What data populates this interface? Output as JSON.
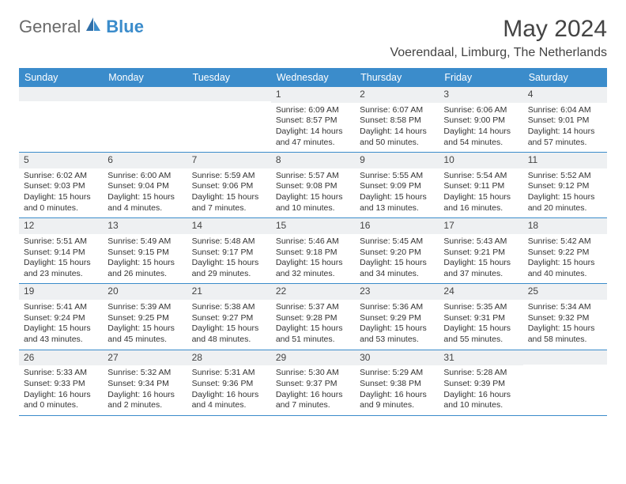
{
  "logo": {
    "text1": "General",
    "text2": "Blue"
  },
  "title": "May 2024",
  "location": "Voerendaal, Limburg, The Netherlands",
  "colors": {
    "accent": "#3b8ccb",
    "header_text": "#ffffff",
    "day_num_bg": "#eef0f2",
    "text": "#333333",
    "title_text": "#444444",
    "logo_gray": "#6a6a6a"
  },
  "fonts": {
    "title_size": 30,
    "location_size": 16,
    "dow_size": 12.5,
    "cell_size": 10.5
  },
  "days_of_week": [
    "Sunday",
    "Monday",
    "Tuesday",
    "Wednesday",
    "Thursday",
    "Friday",
    "Saturday"
  ],
  "weeks": [
    [
      {
        "blank": true
      },
      {
        "blank": true
      },
      {
        "blank": true
      },
      {
        "num": "1",
        "sunrise": "Sunrise: 6:09 AM",
        "sunset": "Sunset: 8:57 PM",
        "day1": "Daylight: 14 hours",
        "day2": "and 47 minutes."
      },
      {
        "num": "2",
        "sunrise": "Sunrise: 6:07 AM",
        "sunset": "Sunset: 8:58 PM",
        "day1": "Daylight: 14 hours",
        "day2": "and 50 minutes."
      },
      {
        "num": "3",
        "sunrise": "Sunrise: 6:06 AM",
        "sunset": "Sunset: 9:00 PM",
        "day1": "Daylight: 14 hours",
        "day2": "and 54 minutes."
      },
      {
        "num": "4",
        "sunrise": "Sunrise: 6:04 AM",
        "sunset": "Sunset: 9:01 PM",
        "day1": "Daylight: 14 hours",
        "day2": "and 57 minutes."
      }
    ],
    [
      {
        "num": "5",
        "sunrise": "Sunrise: 6:02 AM",
        "sunset": "Sunset: 9:03 PM",
        "day1": "Daylight: 15 hours",
        "day2": "and 0 minutes."
      },
      {
        "num": "6",
        "sunrise": "Sunrise: 6:00 AM",
        "sunset": "Sunset: 9:04 PM",
        "day1": "Daylight: 15 hours",
        "day2": "and 4 minutes."
      },
      {
        "num": "7",
        "sunrise": "Sunrise: 5:59 AM",
        "sunset": "Sunset: 9:06 PM",
        "day1": "Daylight: 15 hours",
        "day2": "and 7 minutes."
      },
      {
        "num": "8",
        "sunrise": "Sunrise: 5:57 AM",
        "sunset": "Sunset: 9:08 PM",
        "day1": "Daylight: 15 hours",
        "day2": "and 10 minutes."
      },
      {
        "num": "9",
        "sunrise": "Sunrise: 5:55 AM",
        "sunset": "Sunset: 9:09 PM",
        "day1": "Daylight: 15 hours",
        "day2": "and 13 minutes."
      },
      {
        "num": "10",
        "sunrise": "Sunrise: 5:54 AM",
        "sunset": "Sunset: 9:11 PM",
        "day1": "Daylight: 15 hours",
        "day2": "and 16 minutes."
      },
      {
        "num": "11",
        "sunrise": "Sunrise: 5:52 AM",
        "sunset": "Sunset: 9:12 PM",
        "day1": "Daylight: 15 hours",
        "day2": "and 20 minutes."
      }
    ],
    [
      {
        "num": "12",
        "sunrise": "Sunrise: 5:51 AM",
        "sunset": "Sunset: 9:14 PM",
        "day1": "Daylight: 15 hours",
        "day2": "and 23 minutes."
      },
      {
        "num": "13",
        "sunrise": "Sunrise: 5:49 AM",
        "sunset": "Sunset: 9:15 PM",
        "day1": "Daylight: 15 hours",
        "day2": "and 26 minutes."
      },
      {
        "num": "14",
        "sunrise": "Sunrise: 5:48 AM",
        "sunset": "Sunset: 9:17 PM",
        "day1": "Daylight: 15 hours",
        "day2": "and 29 minutes."
      },
      {
        "num": "15",
        "sunrise": "Sunrise: 5:46 AM",
        "sunset": "Sunset: 9:18 PM",
        "day1": "Daylight: 15 hours",
        "day2": "and 32 minutes."
      },
      {
        "num": "16",
        "sunrise": "Sunrise: 5:45 AM",
        "sunset": "Sunset: 9:20 PM",
        "day1": "Daylight: 15 hours",
        "day2": "and 34 minutes."
      },
      {
        "num": "17",
        "sunrise": "Sunrise: 5:43 AM",
        "sunset": "Sunset: 9:21 PM",
        "day1": "Daylight: 15 hours",
        "day2": "and 37 minutes."
      },
      {
        "num": "18",
        "sunrise": "Sunrise: 5:42 AM",
        "sunset": "Sunset: 9:22 PM",
        "day1": "Daylight: 15 hours",
        "day2": "and 40 minutes."
      }
    ],
    [
      {
        "num": "19",
        "sunrise": "Sunrise: 5:41 AM",
        "sunset": "Sunset: 9:24 PM",
        "day1": "Daylight: 15 hours",
        "day2": "and 43 minutes."
      },
      {
        "num": "20",
        "sunrise": "Sunrise: 5:39 AM",
        "sunset": "Sunset: 9:25 PM",
        "day1": "Daylight: 15 hours",
        "day2": "and 45 minutes."
      },
      {
        "num": "21",
        "sunrise": "Sunrise: 5:38 AM",
        "sunset": "Sunset: 9:27 PM",
        "day1": "Daylight: 15 hours",
        "day2": "and 48 minutes."
      },
      {
        "num": "22",
        "sunrise": "Sunrise: 5:37 AM",
        "sunset": "Sunset: 9:28 PM",
        "day1": "Daylight: 15 hours",
        "day2": "and 51 minutes."
      },
      {
        "num": "23",
        "sunrise": "Sunrise: 5:36 AM",
        "sunset": "Sunset: 9:29 PM",
        "day1": "Daylight: 15 hours",
        "day2": "and 53 minutes."
      },
      {
        "num": "24",
        "sunrise": "Sunrise: 5:35 AM",
        "sunset": "Sunset: 9:31 PM",
        "day1": "Daylight: 15 hours",
        "day2": "and 55 minutes."
      },
      {
        "num": "25",
        "sunrise": "Sunrise: 5:34 AM",
        "sunset": "Sunset: 9:32 PM",
        "day1": "Daylight: 15 hours",
        "day2": "and 58 minutes."
      }
    ],
    [
      {
        "num": "26",
        "sunrise": "Sunrise: 5:33 AM",
        "sunset": "Sunset: 9:33 PM",
        "day1": "Daylight: 16 hours",
        "day2": "and 0 minutes."
      },
      {
        "num": "27",
        "sunrise": "Sunrise: 5:32 AM",
        "sunset": "Sunset: 9:34 PM",
        "day1": "Daylight: 16 hours",
        "day2": "and 2 minutes."
      },
      {
        "num": "28",
        "sunrise": "Sunrise: 5:31 AM",
        "sunset": "Sunset: 9:36 PM",
        "day1": "Daylight: 16 hours",
        "day2": "and 4 minutes."
      },
      {
        "num": "29",
        "sunrise": "Sunrise: 5:30 AM",
        "sunset": "Sunset: 9:37 PM",
        "day1": "Daylight: 16 hours",
        "day2": "and 7 minutes."
      },
      {
        "num": "30",
        "sunrise": "Sunrise: 5:29 AM",
        "sunset": "Sunset: 9:38 PM",
        "day1": "Daylight: 16 hours",
        "day2": "and 9 minutes."
      },
      {
        "num": "31",
        "sunrise": "Sunrise: 5:28 AM",
        "sunset": "Sunset: 9:39 PM",
        "day1": "Daylight: 16 hours",
        "day2": "and 10 minutes."
      },
      {
        "blank": true
      }
    ]
  ]
}
